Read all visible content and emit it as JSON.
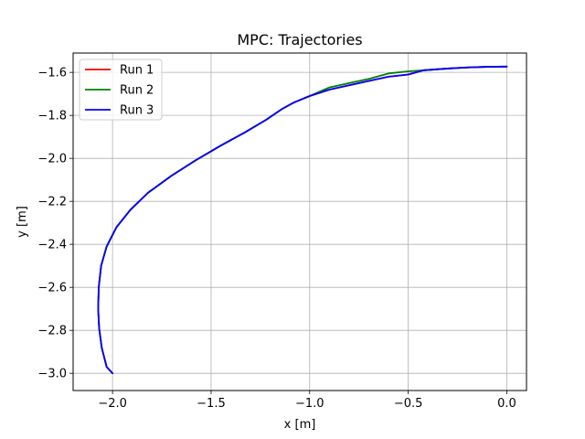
{
  "chart_data": {
    "type": "line",
    "title": "MPC: Trajectories",
    "xlabel": "x [m]",
    "ylabel": "y [m]",
    "xlim": [
      -2.2,
      0.1
    ],
    "ylim": [
      -3.08,
      -1.51
    ],
    "xticks": [
      -2.0,
      -1.5,
      -1.0,
      -0.5,
      0.0
    ],
    "xtick_labels": [
      "−2.0",
      "−1.5",
      "−1.0",
      "−0.5",
      "0.0"
    ],
    "yticks": [
      -3.0,
      -2.8,
      -2.6,
      -2.4,
      -2.2,
      -2.0,
      -1.8,
      -1.6
    ],
    "ytick_labels": [
      "−3.0",
      "−2.8",
      "−2.6",
      "−2.4",
      "−2.2",
      "−2.0",
      "−1.8",
      "−1.6"
    ],
    "grid": true,
    "legend_position": "top-left",
    "series": [
      {
        "name": "Run 1",
        "color": "#ff0000",
        "x": [
          -2.0,
          -2.03,
          -2.055,
          -2.068,
          -2.073,
          -2.07,
          -2.058,
          -2.03,
          -1.98,
          -1.91,
          -1.82,
          -1.7,
          -1.58,
          -1.45,
          -1.33,
          -1.22,
          -1.14,
          -1.08,
          -1.0,
          -0.9,
          -0.8,
          -0.7,
          -0.6,
          -0.5,
          -0.42,
          -0.3,
          -0.2,
          -0.1,
          0.0
        ],
        "y": [
          -3.0,
          -2.97,
          -2.88,
          -2.79,
          -2.7,
          -2.6,
          -2.5,
          -2.41,
          -2.32,
          -2.24,
          -2.16,
          -2.08,
          -2.01,
          -1.94,
          -1.88,
          -1.82,
          -1.77,
          -1.74,
          -1.71,
          -1.68,
          -1.66,
          -1.64,
          -1.62,
          -1.61,
          -1.59,
          -1.582,
          -1.577,
          -1.574,
          -1.573
        ]
      },
      {
        "name": "Run 2",
        "color": "#008000",
        "x": [
          -2.0,
          -2.03,
          -2.055,
          -2.068,
          -2.073,
          -2.07,
          -2.058,
          -2.03,
          -1.98,
          -1.91,
          -1.82,
          -1.7,
          -1.58,
          -1.45,
          -1.33,
          -1.22,
          -1.14,
          -1.08,
          -1.0,
          -0.9,
          -0.8,
          -0.7,
          -0.6,
          -0.5,
          -0.42,
          -0.3,
          -0.2,
          -0.1,
          0.0
        ],
        "y": [
          -3.0,
          -2.97,
          -2.88,
          -2.79,
          -2.7,
          -2.6,
          -2.5,
          -2.41,
          -2.32,
          -2.24,
          -2.16,
          -2.08,
          -2.01,
          -1.94,
          -1.88,
          -1.82,
          -1.77,
          -1.74,
          -1.71,
          -1.67,
          -1.65,
          -1.63,
          -1.605,
          -1.595,
          -1.59,
          -1.582,
          -1.577,
          -1.574,
          -1.573
        ]
      },
      {
        "name": "Run 3",
        "color": "#0000ff",
        "x": [
          -2.0,
          -2.03,
          -2.055,
          -2.068,
          -2.073,
          -2.07,
          -2.058,
          -2.03,
          -1.98,
          -1.91,
          -1.82,
          -1.7,
          -1.58,
          -1.45,
          -1.33,
          -1.22,
          -1.14,
          -1.08,
          -1.0,
          -0.9,
          -0.8,
          -0.7,
          -0.6,
          -0.5,
          -0.42,
          -0.3,
          -0.2,
          -0.1,
          0.0
        ],
        "y": [
          -3.0,
          -2.97,
          -2.88,
          -2.79,
          -2.7,
          -2.6,
          -2.5,
          -2.41,
          -2.32,
          -2.24,
          -2.16,
          -2.08,
          -2.01,
          -1.94,
          -1.88,
          -1.82,
          -1.77,
          -1.74,
          -1.71,
          -1.68,
          -1.66,
          -1.64,
          -1.62,
          -1.61,
          -1.59,
          -1.582,
          -1.577,
          -1.574,
          -1.573
        ]
      }
    ]
  }
}
